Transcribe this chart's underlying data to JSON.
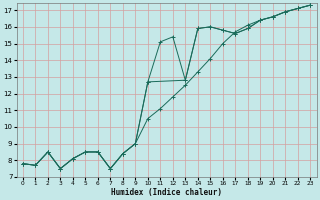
{
  "xlabel": "Humidex (Indice chaleur)",
  "bg_color": "#c5e8e8",
  "grid_color": "#d4a0a0",
  "line_color": "#1a6b5a",
  "xlim": [
    -0.5,
    23.5
  ],
  "ylim": [
    7,
    17.4
  ],
  "xticks": [
    0,
    1,
    2,
    3,
    4,
    5,
    6,
    7,
    8,
    9,
    10,
    11,
    12,
    13,
    14,
    15,
    16,
    17,
    18,
    19,
    20,
    21,
    22,
    23
  ],
  "yticks": [
    7,
    8,
    9,
    10,
    11,
    12,
    13,
    14,
    15,
    16,
    17
  ],
  "line1_x": [
    0,
    1,
    2,
    3,
    4,
    5,
    6,
    7,
    8,
    9,
    10,
    11,
    12,
    13,
    14,
    15,
    16,
    17,
    18,
    19,
    20,
    21,
    22,
    23
  ],
  "line1_y": [
    7.8,
    7.7,
    8.5,
    7.5,
    8.1,
    8.5,
    8.5,
    7.5,
    8.4,
    9.0,
    12.7,
    15.1,
    15.4,
    12.8,
    15.9,
    16.0,
    15.8,
    15.6,
    15.9,
    16.4,
    16.6,
    16.9,
    17.1,
    17.3
  ],
  "line2_x": [
    0,
    1,
    2,
    3,
    4,
    5,
    6,
    7,
    8,
    9,
    10,
    11,
    12,
    13,
    14,
    15,
    16,
    17,
    18,
    19,
    20,
    21,
    22,
    23
  ],
  "line2_y": [
    7.8,
    7.7,
    8.5,
    7.5,
    8.1,
    8.5,
    8.5,
    7.5,
    8.4,
    9.0,
    10.5,
    11.1,
    11.8,
    12.5,
    13.3,
    14.1,
    15.0,
    15.7,
    16.1,
    16.4,
    16.6,
    16.9,
    17.1,
    17.3
  ],
  "line3_x": [
    0,
    1,
    2,
    3,
    4,
    5,
    6,
    7,
    8,
    9,
    10,
    13,
    14,
    15,
    16,
    17,
    18,
    19,
    20,
    21,
    22,
    23
  ],
  "line3_y": [
    7.8,
    7.7,
    8.5,
    7.5,
    8.1,
    8.5,
    8.5,
    7.5,
    8.4,
    9.0,
    12.7,
    12.8,
    15.9,
    16.0,
    15.8,
    15.6,
    15.9,
    16.4,
    16.6,
    16.9,
    17.1,
    17.3
  ]
}
